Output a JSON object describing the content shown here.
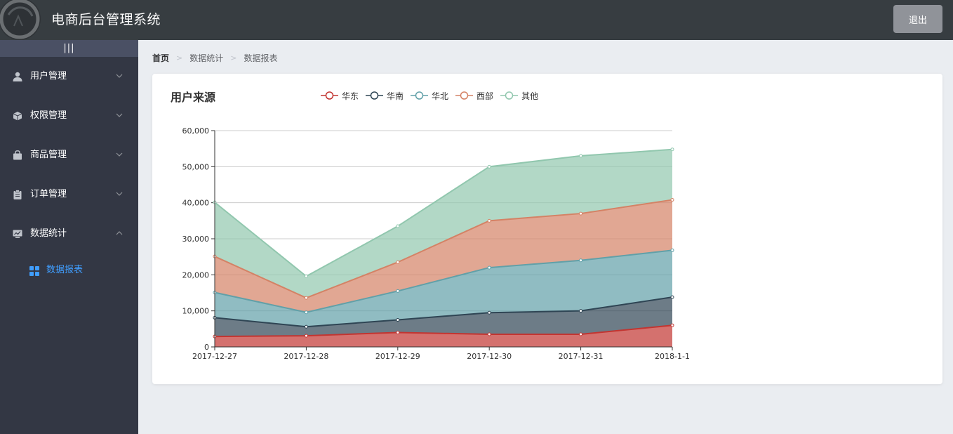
{
  "header": {
    "title": "电商后台管理系统",
    "logout_label": "退出"
  },
  "sidebar": {
    "collapse_label": "|||",
    "items": [
      {
        "label": "用户管理",
        "icon": "user-icon",
        "expanded": false
      },
      {
        "label": "权限管理",
        "icon": "cube-icon",
        "expanded": false
      },
      {
        "label": "商品管理",
        "icon": "shopping-bag-icon",
        "expanded": false
      },
      {
        "label": "订单管理",
        "icon": "clipboard-icon",
        "expanded": false
      },
      {
        "label": "数据统计",
        "icon": "monitor-chart-icon",
        "expanded": true
      }
    ],
    "active_sub_item": {
      "label": "数据报表",
      "icon": "grid-icon"
    }
  },
  "breadcrumb": [
    "首页",
    "数据统计",
    "数据报表"
  ],
  "colors": {
    "header_bg": "#373d41",
    "sidebar_bg": "#333744",
    "accent": "#409eff",
    "logout_bg": "#909399"
  },
  "chart_data": {
    "type": "area",
    "stacked": true,
    "title": "用户来源",
    "categories": [
      "2017-12-27",
      "2017-12-28",
      "2017-12-29",
      "2017-12-30",
      "2017-12-31",
      "2018-1-1"
    ],
    "ylim": [
      0,
      60000
    ],
    "yticks": [
      0,
      10000,
      20000,
      30000,
      40000,
      50000,
      60000
    ],
    "ytick_labels": [
      "0",
      "10,000",
      "20,000",
      "30,000",
      "40,000",
      "50,000",
      "60,000"
    ],
    "grid": true,
    "legend_position": "top",
    "series": [
      {
        "name": "华东",
        "color": "#c23531",
        "values": [
          2900,
          3100,
          4000,
          3500,
          3500,
          6000
        ]
      },
      {
        "name": "华南",
        "color": "#2f4554",
        "values": [
          5200,
          2500,
          3500,
          6000,
          6500,
          7800
        ]
      },
      {
        "name": "华北",
        "color": "#61a0a8",
        "values": [
          7000,
          4000,
          8000,
          12500,
          14000,
          13000
        ]
      },
      {
        "name": "西部",
        "color": "#d48265",
        "values": [
          10000,
          4000,
          8000,
          13000,
          13000,
          14000
        ]
      },
      {
        "name": "其他",
        "color": "#91c7ae",
        "values": [
          15000,
          6000,
          10000,
          15000,
          16000,
          14000
        ]
      }
    ]
  }
}
